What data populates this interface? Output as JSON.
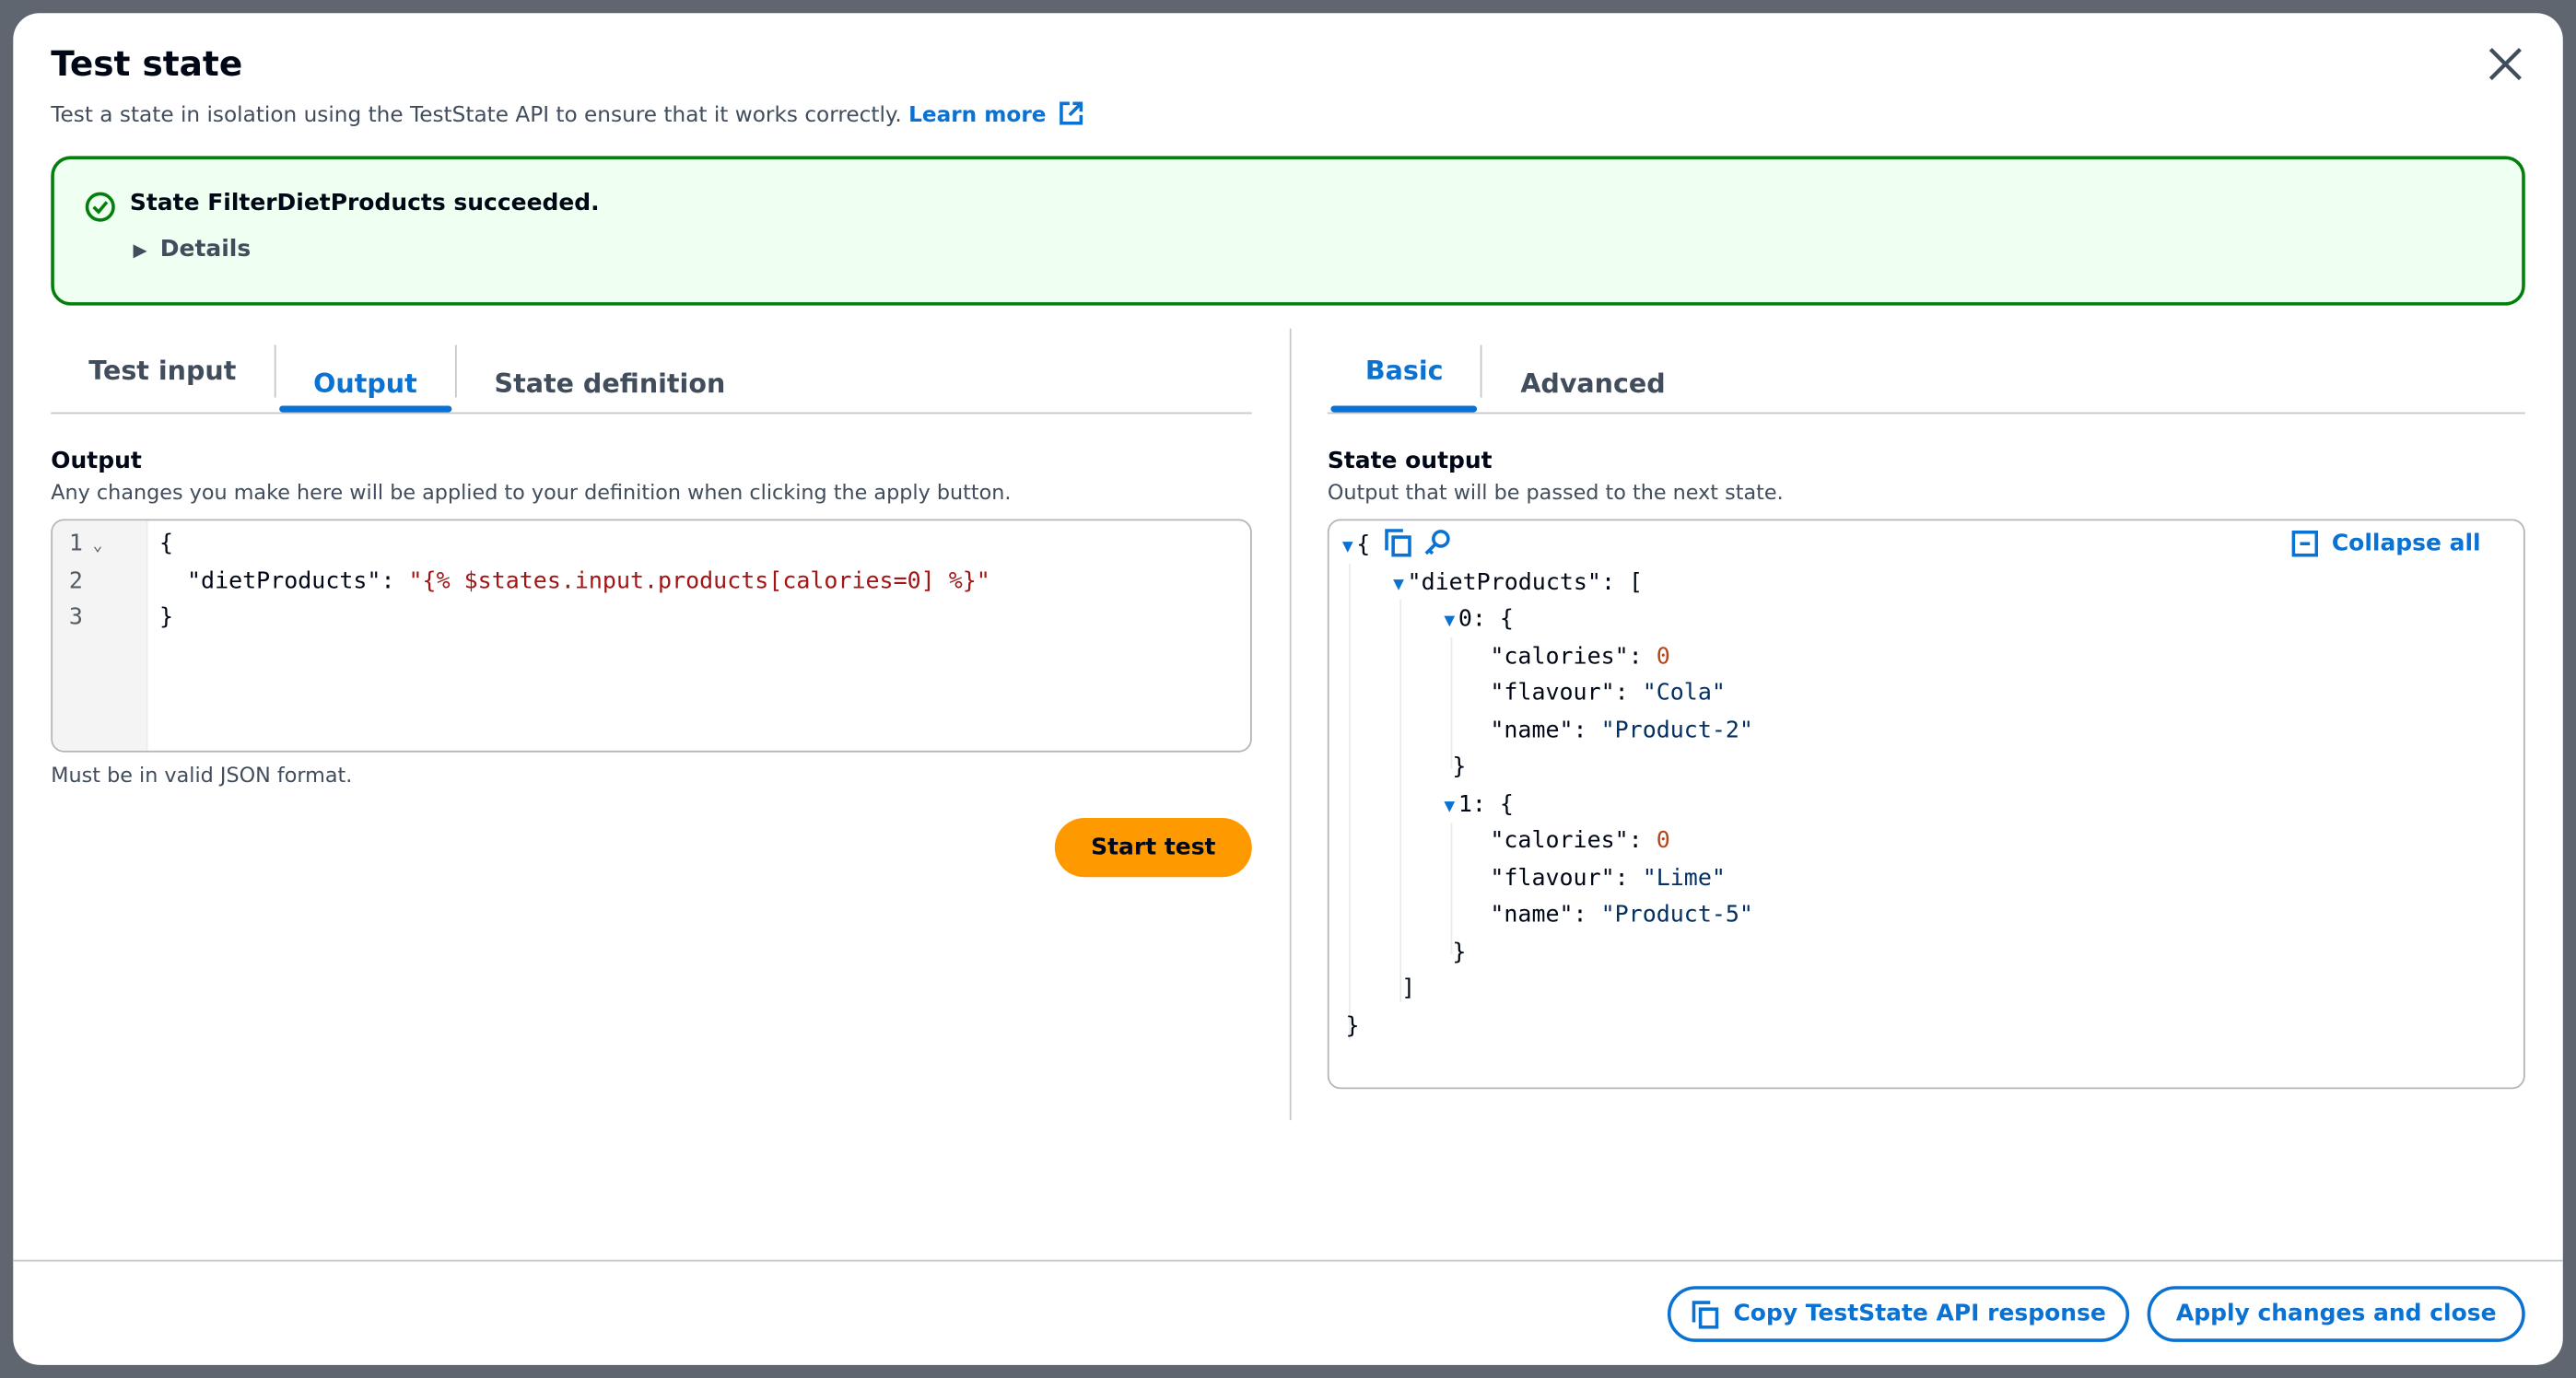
{
  "modal": {
    "title": "Test state",
    "subtitle": "Test a state in isolation using the TestState API to ensure that it works correctly.",
    "learn_more": "Learn more",
    "close_icon": "close-icon"
  },
  "alert": {
    "prefix": "State ",
    "state_name": "FilterDietProducts",
    "suffix": " succeeded.",
    "details": "Details",
    "status_color": "#037f0c"
  },
  "left": {
    "tabs": [
      {
        "label": "Test input"
      },
      {
        "label": "Output",
        "active": true
      },
      {
        "label": "State definition"
      }
    ],
    "label": "Output",
    "description": "Any changes you make here will be applied to your definition when clicking the apply button.",
    "editor": {
      "lines": [
        {
          "n": "1",
          "text": "{"
        },
        {
          "n": "2",
          "key": "  \"dietProducts\": ",
          "value": "\"{% $states.input.products[calories=0] %}\""
        },
        {
          "n": "3",
          "text": "}"
        }
      ]
    },
    "help": "Must be in valid JSON format.",
    "start_test": "Start test"
  },
  "right": {
    "tabs": [
      {
        "label": "Basic",
        "active": true
      },
      {
        "label": "Advanced"
      }
    ],
    "label": "State output",
    "description": "Output that will be passed to the next state.",
    "collapse_all": "Collapse all",
    "tree": [
      {
        "indent": 0,
        "toggle": true,
        "text": "{"
      },
      {
        "indent": 1,
        "toggle": true,
        "text": "\"dietProducts\": ["
      },
      {
        "indent": 2,
        "toggle": true,
        "text": "0: {"
      },
      {
        "indent": 3,
        "key": "\"calories\": ",
        "value": "0",
        "type": "number"
      },
      {
        "indent": 3,
        "key": "\"flavour\": ",
        "value": "\"Cola\"",
        "type": "string"
      },
      {
        "indent": 3,
        "key": "\"name\": ",
        "value": "\"Product-2\"",
        "type": "string"
      },
      {
        "indent": 2,
        "text": "}"
      },
      {
        "indent": 2,
        "toggle": true,
        "text": "1: {"
      },
      {
        "indent": 3,
        "key": "\"calories\": ",
        "value": "0",
        "type": "number"
      },
      {
        "indent": 3,
        "key": "\"flavour\": ",
        "value": "\"Lime\"",
        "type": "string"
      },
      {
        "indent": 3,
        "key": "\"name\": ",
        "value": "\"Product-5\"",
        "type": "string"
      },
      {
        "indent": 2,
        "text": "}"
      },
      {
        "indent": 1,
        "text": "]"
      },
      {
        "indent": 0,
        "text": "}"
      }
    ]
  },
  "footer": {
    "copy_response": "Copy TestState API response",
    "apply_close": "Apply changes and close"
  },
  "colors": {
    "accent": "#0972d3",
    "primary_button": "#ff9900",
    "success_bg": "#effff1"
  }
}
